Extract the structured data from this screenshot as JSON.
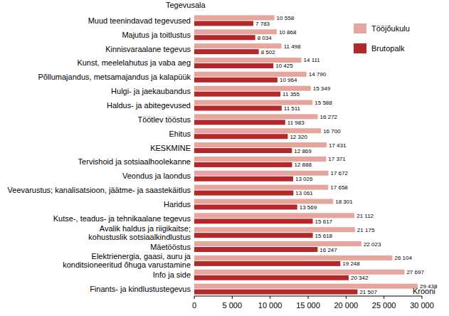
{
  "chart_data": {
    "type": "bar",
    "orientation": "horizontal",
    "y_label": "Tegevusala",
    "x_label": "Krooni",
    "legend": "top-right",
    "grid": false,
    "data_labels": true,
    "categories": [
      "Muud teenindavad tegevused",
      "Majutus ja toitlustus",
      "Kinnisvaraalane tegevus",
      "Kunst, meelelahutus ja vaba aeg",
      "Põllumajandus, metsamajandus ja kalapüük",
      "Hulgi- ja jaekaubandus",
      "Haldus- ja abitegevused",
      "Töötlev tööstus",
      "Ehitus",
      "KESKMINE",
      "Tervishoid ja sotsiaalhoolekanne",
      "Veondus ja laondus",
      "Veevarustus; kanalisatsioon, jäätme- ja saastekäitlus",
      "Haridus",
      "Kutse-, teadus- ja tehnikaalane tegevus",
      "Avalik haldus ja riigikaitse;\nkohustuslik sotsiaalkindlustus",
      "Mäetööstus",
      "Elektrienergia, gaasi, auru ja\nkonditsioneeritud õhuga varustamine",
      "Info ja side",
      "Finants- ja kindlustustegevus"
    ],
    "series": [
      {
        "name": "Tööjõukulu",
        "color": "#e6a59d",
        "values": [
          10558,
          10868,
          11498,
          14111,
          14790,
          15349,
          15588,
          16272,
          16700,
          17431,
          17371,
          17672,
          17658,
          18301,
          21112,
          21175,
          22023,
          26104,
          27697,
          29438
        ],
        "value_labels": [
          "10 558",
          "10 868",
          "11 498",
          "14 111",
          "14 790",
          "15 349",
          "15 588",
          "16 272",
          "16 700",
          "17 431",
          "17 371",
          "17 672",
          "17 658",
          "18 301",
          "21 112",
          "21 175",
          "22 023",
          "26 104",
          "27 697",
          "29 438"
        ]
      },
      {
        "name": "Brutopalk",
        "color": "#b5282a",
        "values": [
          7783,
          8034,
          8502,
          10425,
          10964,
          11355,
          11511,
          11983,
          12320,
          12869,
          12888,
          13026,
          13061,
          13569,
          15617,
          15618,
          16247,
          19248,
          20342,
          21507
        ],
        "value_labels": [
          "7 783",
          "8 034",
          "8 502",
          "10 425",
          "10 964",
          "11 355",
          "11 511",
          "11 983",
          "12 320",
          "12 869",
          "12 888",
          "13 026",
          "13 061",
          "13 569",
          "15 617",
          "15 618",
          "16 247",
          "19 248",
          "20 342",
          "21 507"
        ]
      }
    ],
    "xlim": [
      0,
      30000
    ],
    "xticks": [
      0,
      {
        "value": 5000,
        "label": "5 000"
      },
      {
        "value": 10000,
        "label": "10 000"
      },
      {
        "value": 15000,
        "label": "15 000"
      },
      {
        "value": 20000,
        "label": "20 000"
      },
      {
        "value": 25000,
        "label": "25 000"
      },
      {
        "value": 30000,
        "label": "30 000"
      }
    ]
  }
}
